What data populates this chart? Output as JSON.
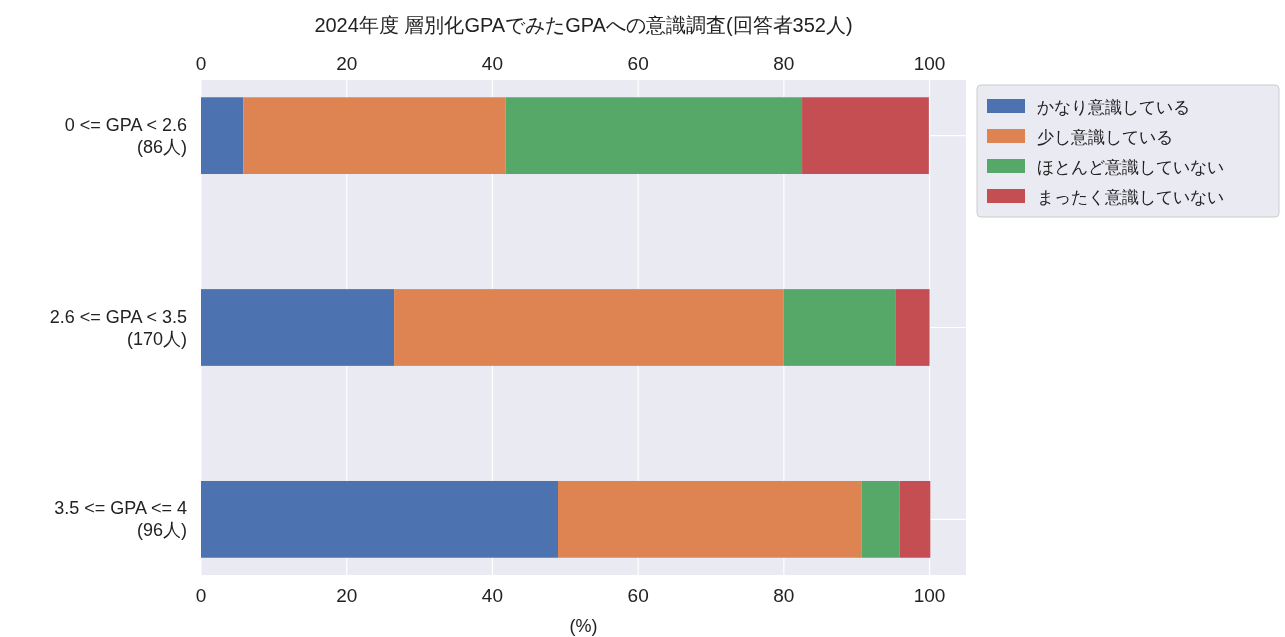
{
  "chart_data": {
    "type": "bar",
    "orientation": "horizontal",
    "stacked": true,
    "title": "2024年度 層別化GPAでみたGPAへの意識調査(回答者352人)",
    "xlabel": "(%)",
    "categories": [
      "0 <= GPA < 2.6\n(86人)",
      "2.6 <= GPA < 3.5\n(170人)",
      "3.5 <= GPA <= 4\n(96人)"
    ],
    "series": [
      {
        "name": "かなり意識している",
        "color": "#4c72b0",
        "values": [
          5.8,
          26.5,
          49.0
        ]
      },
      {
        "name": "少し意識している",
        "color": "#dd8452",
        "values": [
          36.0,
          53.5,
          41.7
        ]
      },
      {
        "name": "ほとんど意識していない",
        "color": "#55a868",
        "values": [
          40.7,
          15.3,
          5.2
        ]
      },
      {
        "name": "まったく意識していない",
        "color": "#c44e52",
        "values": [
          17.4,
          4.7,
          4.2
        ]
      }
    ],
    "xlim": [
      0,
      105
    ],
    "xticks": [
      0,
      20,
      40,
      60,
      80,
      100
    ],
    "x2lim": [
      0,
      105
    ],
    "x2ticks": [
      0,
      20,
      40,
      60,
      80,
      100
    ],
    "grid": true,
    "legend": "top right"
  }
}
